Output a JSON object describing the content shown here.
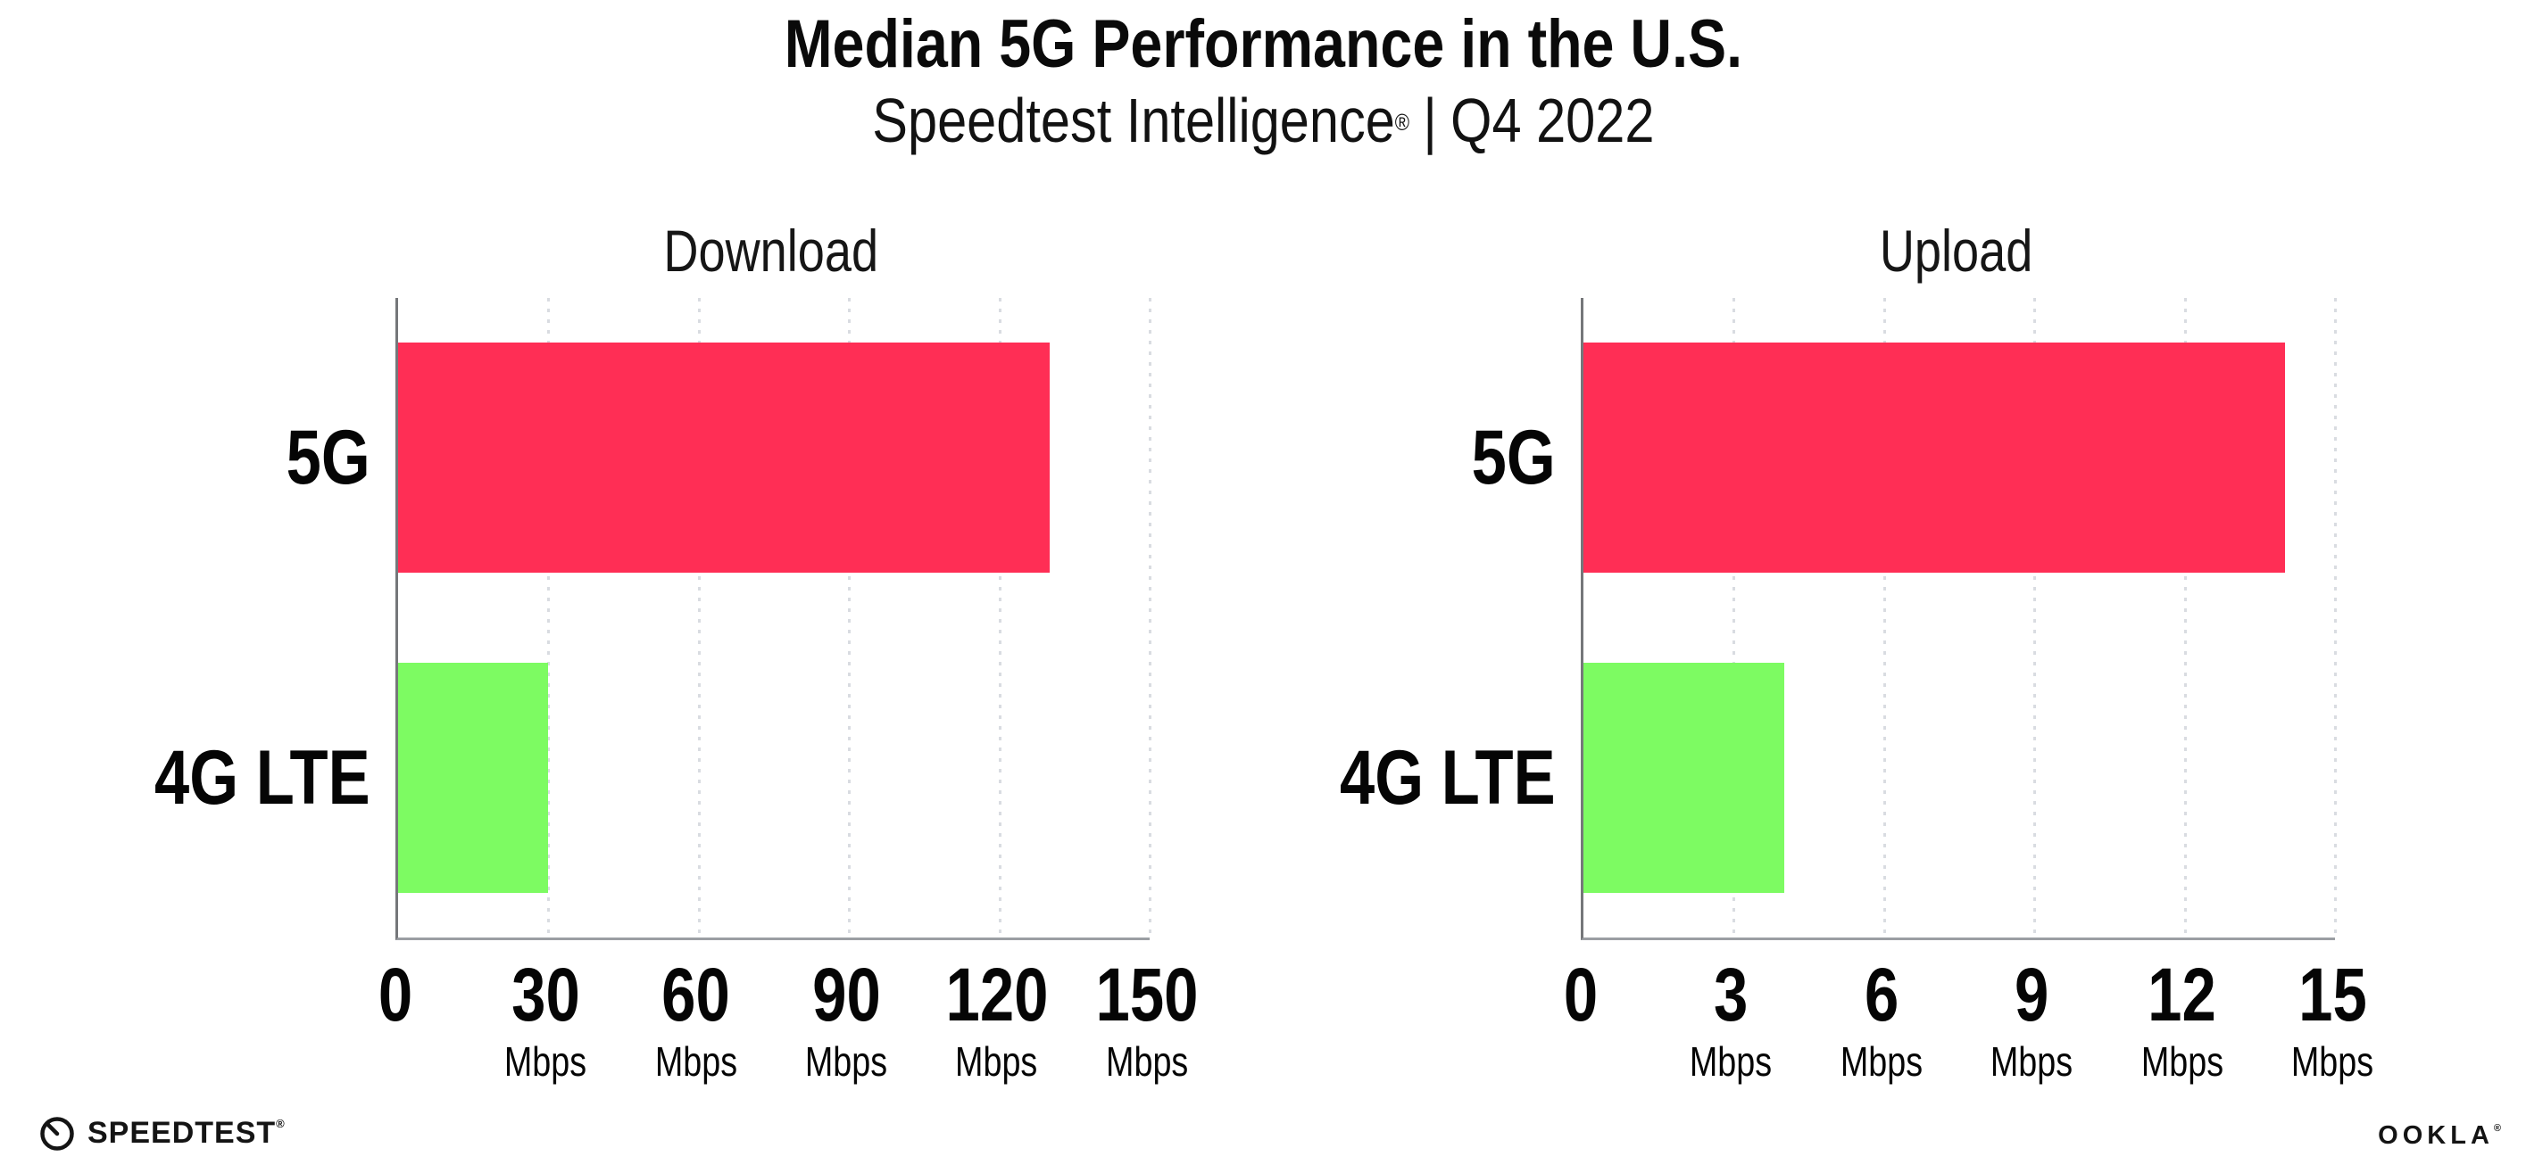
{
  "header": {
    "title": "Median 5G Performance in the U.S.",
    "subtitle_product": "Speedtest Intelligence",
    "subtitle_reg": "®",
    "subtitle_separator": "|",
    "subtitle_period": "Q4 2022"
  },
  "chart_data": [
    {
      "type": "bar",
      "orientation": "horizontal",
      "title": "Download",
      "categories": [
        "5G",
        "4G LTE"
      ],
      "values": [
        130,
        30
      ],
      "unit": "Mbps",
      "xlim": [
        0,
        150
      ],
      "xticks": [
        0,
        30,
        60,
        90,
        120,
        150
      ],
      "bar_colors": [
        "#ff2e55",
        "#7dfb62"
      ],
      "grid": "dotted-vertical",
      "legend": "none"
    },
    {
      "type": "bar",
      "orientation": "horizontal",
      "title": "Upload",
      "categories": [
        "5G",
        "4G LTE"
      ],
      "values": [
        14,
        4
      ],
      "unit": "Mbps",
      "xlim": [
        0,
        15
      ],
      "xticks": [
        0,
        3,
        6,
        9,
        12,
        15
      ],
      "bar_colors": [
        "#ff2e55",
        "#7dfb62"
      ],
      "grid": "dotted-vertical",
      "legend": "none"
    }
  ],
  "footer": {
    "speedtest_label": "SPEEDTEST",
    "speedtest_reg": "®",
    "ookla_label": "OOKLA",
    "ookla_reg": "®"
  },
  "colors": {
    "bar_5g": "#ff2e55",
    "bar_4g_lte": "#7dfb62",
    "axis": "#9b9ea3",
    "spine": "#75777a",
    "gridline": "#d9dce1",
    "text": "#0a0a0a"
  }
}
